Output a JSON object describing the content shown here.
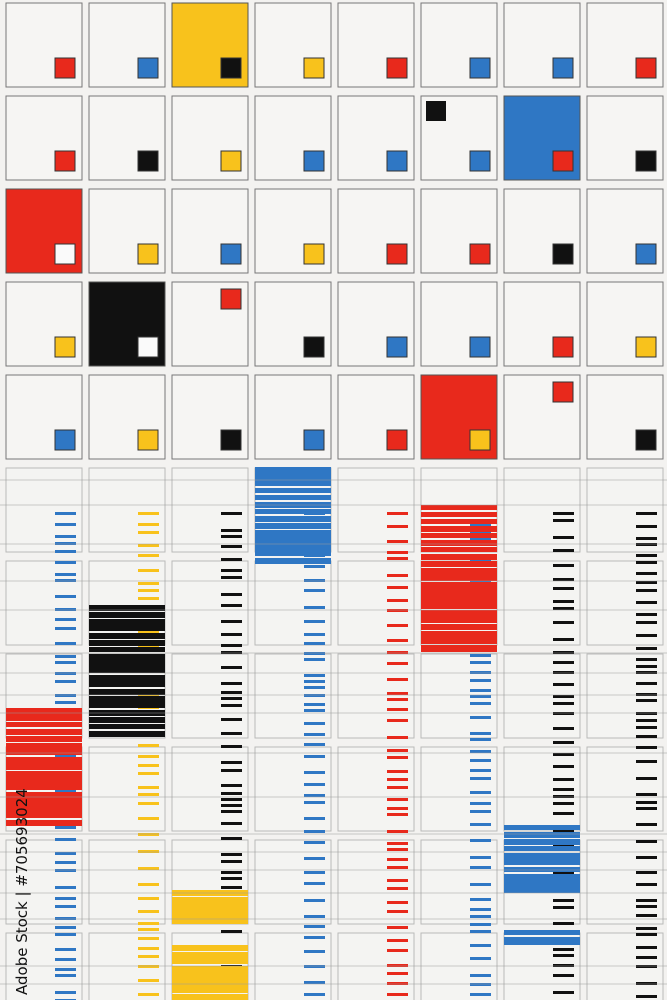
{
  "credit": "Adobe Stock | #705693024"
}
